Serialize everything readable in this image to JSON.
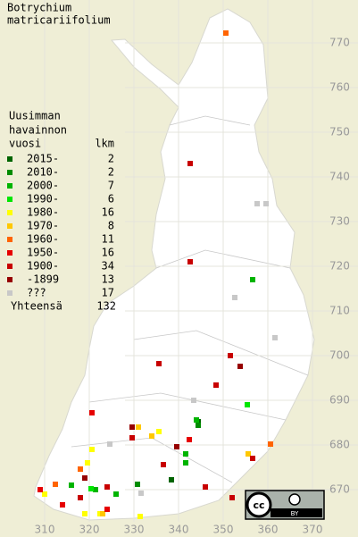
{
  "title": [
    "Botrychium",
    "matricariifolium"
  ],
  "legend": {
    "header": [
      "Uusimman",
      "havainnon",
      "vuosi"
    ],
    "count_header": "lkm",
    "entries": [
      {
        "label": "2015-",
        "count": 2,
        "color": "#006400",
        "points": [
          [
            338.4,
            672.2
          ],
          [
            344.4,
            685.2
          ]
        ]
      },
      {
        "label": "2010-",
        "count": 2,
        "color": "#008c00",
        "points": [
          [
            344.4,
            684.4
          ],
          [
            330.8,
            671.2
          ]
        ]
      },
      {
        "label": "2000-",
        "count": 7,
        "color": "#00b400",
        "points": [
          [
            341.6,
            678
          ],
          [
            341.6,
            676
          ],
          [
            356.6,
            717
          ],
          [
            321.4,
            670
          ],
          [
            326,
            669
          ],
          [
            316,
            671
          ],
          [
            344,
            685.6
          ]
        ]
      },
      {
        "label": "1990-",
        "count": 6,
        "color": "#00e600",
        "points": [
          [
            355.4,
            689
          ],
          [
            320.4,
            670.2
          ]
        ]
      },
      {
        "label": "1980-",
        "count": 16,
        "color": "#ffff00",
        "points": [
          [
            320.6,
            679
          ],
          [
            319,
            664.6
          ],
          [
            335.6,
            683
          ],
          [
            331.4,
            664
          ],
          [
            322.4,
            664.6
          ],
          [
            310,
            669
          ],
          [
            319.6,
            676
          ]
        ]
      },
      {
        "label": "1970-",
        "count": 8,
        "color": "#ffc800",
        "points": [
          [
            331,
            684
          ],
          [
            355.6,
            678
          ],
          [
            334,
            682
          ],
          [
            323,
            664.6
          ]
        ]
      },
      {
        "label": "1960-",
        "count": 11,
        "color": "#ff6400",
        "points": [
          [
            350.6,
            772.2
          ],
          [
            360.6,
            680.2
          ],
          [
            318,
            674.6
          ],
          [
            312.4,
            671.2
          ]
        ]
      },
      {
        "label": "1950-",
        "count": 16,
        "color": "#e60000",
        "points": [
          [
            320.6,
            687.2
          ],
          [
            342.4,
            681.2
          ],
          [
            324,
            665.6
          ],
          [
            314,
            666.6
          ],
          [
            309,
            670
          ]
        ]
      },
      {
        "label": "1900-",
        "count": 34,
        "color": "#c80000",
        "points": [
          [
            342.6,
            743
          ],
          [
            342.6,
            721
          ],
          [
            335.6,
            698.2
          ],
          [
            348.4,
            693.4
          ],
          [
            351.6,
            700
          ],
          [
            329.6,
            681.6
          ],
          [
            336.6,
            675.6
          ],
          [
            356.6,
            677
          ],
          [
            346,
            670.6
          ],
          [
            352,
            668.2
          ],
          [
            318,
            668.2
          ],
          [
            324,
            670.6
          ]
        ]
      },
      {
        "label": "-1899",
        "count": 13,
        "color": "#960000",
        "points": [
          [
            353.8,
            697.6
          ],
          [
            329.6,
            684
          ],
          [
            339.6,
            679.6
          ],
          [
            319,
            672.6
          ]
        ]
      },
      {
        "label": "???",
        "count": 17,
        "color": "#c8c8c8",
        "points": [
          [
            357.6,
            734
          ],
          [
            359.6,
            734
          ],
          [
            352.6,
            713
          ],
          [
            361.6,
            704
          ],
          [
            343.4,
            690
          ],
          [
            324.6,
            680.2
          ],
          [
            331.6,
            669.2
          ]
        ]
      }
    ],
    "total_label": "Yhteensä",
    "total": 132
  },
  "xlim": [
    302,
    378
  ],
  "ylim": [
    662,
    778
  ],
  "xticks": [
    310,
    320,
    330,
    340,
    350,
    360,
    370
  ],
  "yticks": [
    670,
    680,
    690,
    700,
    710,
    720,
    730,
    740,
    750,
    760,
    770
  ],
  "license": "BY"
}
